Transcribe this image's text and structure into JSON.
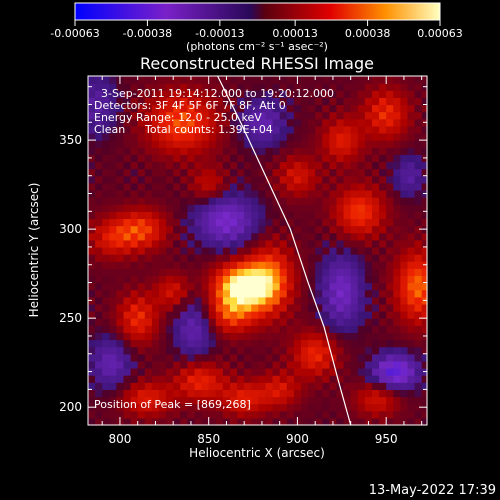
{
  "chart_data": {
    "type": "heatmap",
    "title": "Reconstructed RHESSI Image",
    "xlabel": "Heliocentric X (arcsec)",
    "ylabel": "Heliocentric Y (arcsec)",
    "xlim": [
      782,
      973
    ],
    "ylim": [
      190,
      386
    ],
    "x_ticks": [
      800,
      850,
      900,
      950
    ],
    "y_ticks": [
      200,
      250,
      300,
      350
    ],
    "colorbar": {
      "min": -0.00063,
      "max": 0.00063,
      "tick_values": [
        -0.00063,
        -0.00038,
        -0.00013,
        0.00013,
        0.00038,
        0.00063
      ],
      "tick_labels": [
        "-0.00063",
        "-0.00038",
        "-0.00013",
        "0.00013",
        "0.00038",
        "0.00063"
      ],
      "unit_label": "(photons cm⁻² s⁻¹ asec⁻²)"
    },
    "annotations": {
      "time_range": "3-Sep-2011 19:14:12.000 to 19:20:12.000",
      "detectors": "Detectors: 3F 4F 5F 6F 7F 8F, Att 0",
      "energy_range": "Energy Range: 12.0 - 25.0 keV",
      "algorithm": "Clean",
      "total_counts": "Total counts: 1.39E+04",
      "peak_position": "Position of Peak = [869,268]"
    },
    "peak": {
      "x": 869,
      "y": 268
    },
    "limb_curve": {
      "x": [
        855,
        868,
        882,
        896,
        906,
        915,
        923,
        930
      ],
      "y": [
        386,
        360,
        330,
        300,
        270,
        245,
        215,
        190
      ]
    },
    "hot_sources": [
      {
        "x": 869,
        "y": 268,
        "w": 1.0,
        "sx": 11,
        "sy": 9
      },
      {
        "x": 885,
        "y": 272,
        "w": 0.55,
        "sx": 9,
        "sy": 14
      },
      {
        "x": 862,
        "y": 252,
        "w": 0.45,
        "sx": 10,
        "sy": 8
      },
      {
        "x": 835,
        "y": 360,
        "w": 0.55,
        "sx": 14,
        "sy": 12
      },
      {
        "x": 812,
        "y": 300,
        "w": 0.5,
        "sx": 10,
        "sy": 8
      },
      {
        "x": 795,
        "y": 295,
        "w": 0.35,
        "sx": 9,
        "sy": 8
      },
      {
        "x": 810,
        "y": 250,
        "w": 0.45,
        "sx": 8,
        "sy": 10
      },
      {
        "x": 830,
        "y": 265,
        "w": 0.35,
        "sx": 7,
        "sy": 7
      },
      {
        "x": 845,
        "y": 215,
        "w": 0.45,
        "sx": 10,
        "sy": 8
      },
      {
        "x": 870,
        "y": 205,
        "w": 0.4,
        "sx": 9,
        "sy": 7
      },
      {
        "x": 815,
        "y": 205,
        "w": 0.4,
        "sx": 10,
        "sy": 7
      },
      {
        "x": 910,
        "y": 230,
        "w": 0.45,
        "sx": 9,
        "sy": 9
      },
      {
        "x": 890,
        "y": 210,
        "w": 0.35,
        "sx": 8,
        "sy": 7
      },
      {
        "x": 935,
        "y": 310,
        "w": 0.5,
        "sx": 10,
        "sy": 10
      },
      {
        "x": 950,
        "y": 365,
        "w": 0.45,
        "sx": 9,
        "sy": 10
      },
      {
        "x": 925,
        "y": 350,
        "w": 0.4,
        "sx": 8,
        "sy": 9
      },
      {
        "x": 968,
        "y": 268,
        "w": 0.6,
        "sx": 9,
        "sy": 14
      },
      {
        "x": 945,
        "y": 205,
        "w": 0.35,
        "sx": 9,
        "sy": 7
      },
      {
        "x": 900,
        "y": 330,
        "w": 0.35,
        "sx": 8,
        "sy": 8
      },
      {
        "x": 850,
        "y": 325,
        "w": 0.3,
        "sx": 7,
        "sy": 7
      }
    ],
    "cold_sources": [
      {
        "x": 860,
        "y": 305,
        "w": 0.55,
        "sx": 12,
        "sy": 10
      },
      {
        "x": 842,
        "y": 245,
        "w": 0.4,
        "sx": 8,
        "sy": 12
      },
      {
        "x": 787,
        "y": 370,
        "w": 0.3,
        "sx": 8,
        "sy": 12
      },
      {
        "x": 955,
        "y": 220,
        "w": 0.7,
        "sx": 9,
        "sy": 7
      },
      {
        "x": 795,
        "y": 225,
        "w": 0.4,
        "sx": 8,
        "sy": 10
      },
      {
        "x": 925,
        "y": 265,
        "w": 0.5,
        "sx": 8,
        "sy": 14
      },
      {
        "x": 880,
        "y": 360,
        "w": 0.4,
        "sx": 9,
        "sy": 9
      },
      {
        "x": 963,
        "y": 330,
        "w": 0.3,
        "sx": 6,
        "sy": 8
      }
    ]
  },
  "footer": {
    "timestamp": "13-May-2022 17:39"
  }
}
